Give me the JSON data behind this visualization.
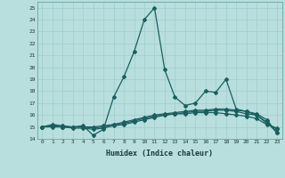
{
  "xlabel": "Humidex (Indice chaleur)",
  "bg_color": "#b8dedd",
  "grid_color": "#9ecece",
  "line_color": "#1a5f5f",
  "xlim": [
    -0.5,
    23.5
  ],
  "ylim": [
    14,
    25.5
  ],
  "yticks": [
    14,
    15,
    16,
    17,
    18,
    19,
    20,
    21,
    22,
    23,
    24,
    25
  ],
  "xticks": [
    0,
    1,
    2,
    3,
    4,
    5,
    6,
    7,
    8,
    9,
    10,
    11,
    12,
    13,
    14,
    15,
    16,
    17,
    18,
    19,
    20,
    21,
    22,
    23
  ],
  "line1_x": [
    0,
    1,
    2,
    3,
    4,
    5,
    6,
    7,
    8,
    9,
    10,
    11,
    12,
    13,
    14,
    15,
    16,
    17,
    18,
    19,
    20,
    21,
    22,
    23
  ],
  "line1_y": [
    15.0,
    15.2,
    15.1,
    15.0,
    15.1,
    14.3,
    14.8,
    17.5,
    19.2,
    21.3,
    24.0,
    25.0,
    19.8,
    17.5,
    16.8,
    17.0,
    18.0,
    17.9,
    19.0,
    16.5,
    16.3,
    16.0,
    15.3,
    14.8
  ],
  "line2_x": [
    0,
    1,
    2,
    3,
    4,
    5,
    6,
    7,
    8,
    9,
    10,
    11,
    12,
    13,
    14,
    15,
    16,
    17,
    18,
    19,
    20,
    21,
    22,
    23
  ],
  "line2_y": [
    15.0,
    15.1,
    15.0,
    15.0,
    15.0,
    14.9,
    15.0,
    15.2,
    15.4,
    15.6,
    15.8,
    16.0,
    16.1,
    16.2,
    16.3,
    16.4,
    16.4,
    16.5,
    16.5,
    16.4,
    16.3,
    16.1,
    15.6,
    14.5
  ],
  "line3_x": [
    0,
    1,
    2,
    3,
    4,
    5,
    6,
    7,
    8,
    9,
    10,
    11,
    12,
    13,
    14,
    15,
    16,
    17,
    18,
    19,
    20,
    21,
    22,
    23
  ],
  "line3_y": [
    15.0,
    15.1,
    15.0,
    14.9,
    14.9,
    14.8,
    14.9,
    15.1,
    15.2,
    15.4,
    15.6,
    15.8,
    16.0,
    16.1,
    16.2,
    16.3,
    16.3,
    16.4,
    16.4,
    16.3,
    16.1,
    16.0,
    15.4,
    14.5
  ],
  "line4_x": [
    0,
    1,
    2,
    3,
    4,
    5,
    6,
    7,
    8,
    9,
    10,
    11,
    12,
    13,
    14,
    15,
    16,
    17,
    18,
    19,
    20,
    21,
    22,
    23
  ],
  "line4_y": [
    15.0,
    15.0,
    15.0,
    15.0,
    15.0,
    15.0,
    15.1,
    15.2,
    15.3,
    15.5,
    15.7,
    15.9,
    16.0,
    16.1,
    16.1,
    16.2,
    16.2,
    16.2,
    16.1,
    16.0,
    15.9,
    15.7,
    15.2,
    14.9
  ]
}
